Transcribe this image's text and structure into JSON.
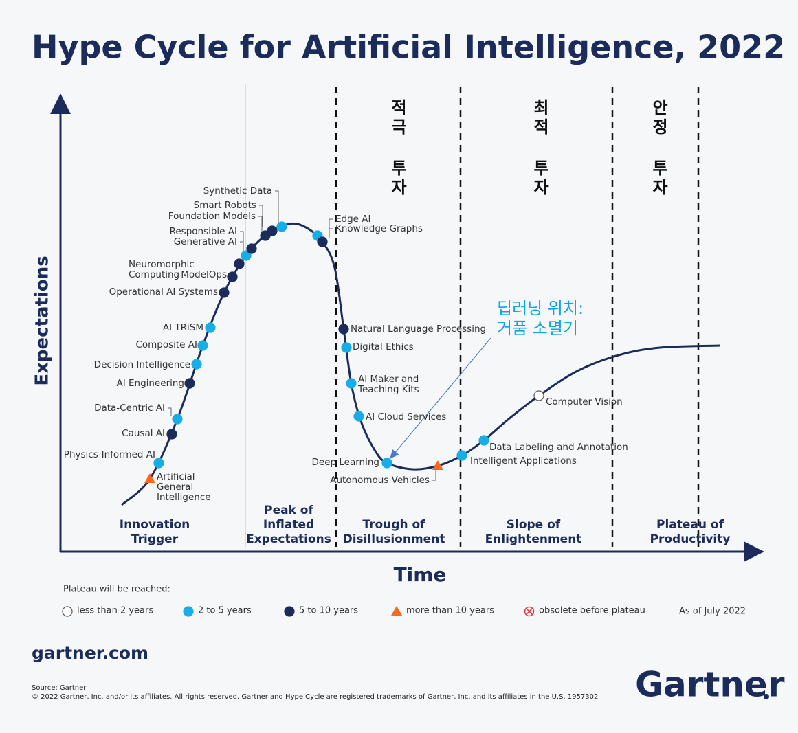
{
  "title": "Hype Cycle for Artificial Intelligence, 2022",
  "axes": {
    "y": "Expectations",
    "x": "Time"
  },
  "phases": [
    [
      "Innovation",
      "Trigger"
    ],
    [
      "Peak of",
      "Inflated",
      "Expectations"
    ],
    [
      "Trough of",
      "Disillusionment"
    ],
    [
      "Slope of",
      "Enlightenment"
    ],
    [
      "Plateau of",
      "Productivity"
    ]
  ],
  "investment_notes": [
    "적극 투자",
    "최적 투자",
    "안정 투자"
  ],
  "callout": [
    "딥러닝 위치:",
    "거품 소멸기"
  ],
  "technologies": [
    {
      "label": [
        "Artificial",
        "General",
        "Intelligence"
      ],
      "color": "#f26b21",
      "shape": "triangle"
    },
    {
      "label": [
        "Physics-Informed AI"
      ],
      "color": "#17aee8",
      "shape": "circle"
    },
    {
      "label": [
        "Causal AI"
      ],
      "color": "#1c2c5a",
      "shape": "circle"
    },
    {
      "label": [
        "Data-Centric AI"
      ],
      "color": "#17aee8",
      "shape": "circle"
    },
    {
      "label": [
        "AI Engineering"
      ],
      "color": "#1c2c5a",
      "shape": "circle"
    },
    {
      "label": [
        "Decision Intelligence"
      ],
      "color": "#17aee8",
      "shape": "circle"
    },
    {
      "label": [
        "Composite AI"
      ],
      "color": "#17aee8",
      "shape": "circle"
    },
    {
      "label": [
        "AI TRiSM"
      ],
      "color": "#17aee8",
      "shape": "circle"
    },
    {
      "label": [
        "Operational AI Systems"
      ],
      "color": "#1c2c5a",
      "shape": "circle"
    },
    {
      "label": [
        "ModelOps"
      ],
      "color": "#1c2c5a",
      "shape": "circle"
    },
    {
      "label": [
        "Neuromorphic",
        "Computing"
      ],
      "color": "#1c2c5a",
      "shape": "circle"
    },
    {
      "label": [
        "Generative AI"
      ],
      "color": "#17aee8",
      "shape": "circle"
    },
    {
      "label": [
        "Responsible AI"
      ],
      "color": "#1c2c5a",
      "shape": "circle"
    },
    {
      "label": [
        "Foundation Models"
      ],
      "color": "#1c2c5a",
      "shape": "circle"
    },
    {
      "label": [
        "Smart Robots"
      ],
      "color": "#1c2c5a",
      "shape": "circle"
    },
    {
      "label": [
        "Synthetic Data"
      ],
      "color": "#17aee8",
      "shape": "circle"
    },
    {
      "label": [
        "Edge AI"
      ],
      "color": "#17aee8",
      "shape": "circle"
    },
    {
      "label": [
        "Knowledge Graphs"
      ],
      "color": "#1c2c5a",
      "shape": "circle"
    },
    {
      "label": [
        "Natural Language Processing"
      ],
      "color": "#1c2c5a",
      "shape": "circle"
    },
    {
      "label": [
        "Digital Ethics"
      ],
      "color": "#17aee8",
      "shape": "circle"
    },
    {
      "label": [
        "AI Maker and",
        "Teaching Kits"
      ],
      "color": "#17aee8",
      "shape": "circle"
    },
    {
      "label": [
        "AI Cloud Services"
      ],
      "color": "#17aee8",
      "shape": "circle"
    },
    {
      "label": [
        "Deep Learning"
      ],
      "color": "#17aee8",
      "shape": "circle"
    },
    {
      "label": [
        "Autonomous Vehicles"
      ],
      "color": "#f26b21",
      "shape": "triangle"
    },
    {
      "label": [
        "Intelligent Applications"
      ],
      "color": "#17aee8",
      "shape": "circle"
    },
    {
      "label": [
        "Data Labeling and Annotation"
      ],
      "color": "#17aee8",
      "shape": "circle"
    },
    {
      "label": [
        "Computer Vision"
      ],
      "color": "#ffffff",
      "shape": "circle"
    }
  ],
  "legend": {
    "title": "Plateau will be reached:",
    "items": [
      {
        "label": "less than 2 years",
        "color": "#ffffff",
        "shape": "circle"
      },
      {
        "label": "2 to 5 years",
        "color": "#17aee8",
        "shape": "circle"
      },
      {
        "label": "5 to 10 years",
        "color": "#1c2c5a",
        "shape": "circle"
      },
      {
        "label": "more than 10 years",
        "color": "#f26b21",
        "shape": "triangle"
      },
      {
        "label": "obsolete before plateau",
        "color": "#e03030",
        "shape": "crossed"
      }
    ],
    "date": "As of July 2022"
  },
  "footer": {
    "site": "gartner.com",
    "source": "Source: Gartner",
    "copyright": "© 2022 Gartner, Inc. and/or its affiliates. All rights reserved. Gartner and Hype Cycle are registered trademarks of Gartner, Inc. and its affiliates in the U.S. 1957302",
    "logo": "Gartner"
  }
}
